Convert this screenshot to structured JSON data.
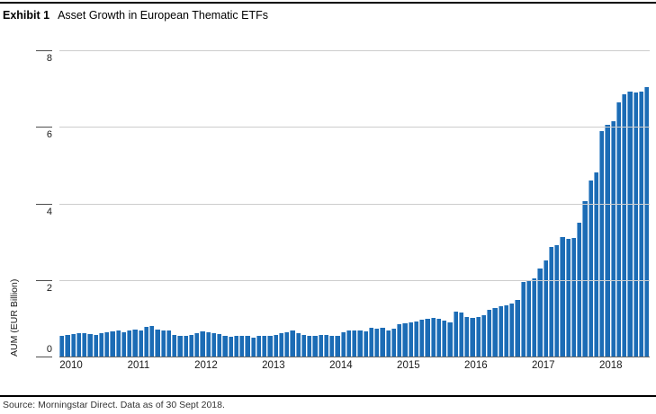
{
  "header": {
    "exhibit_label": "Exhibit 1",
    "title": "Asset Growth in European Thematic ETFs"
  },
  "footer": {
    "source_text": "Source: Morningstar Direct. Data as of 30 Sept 2018."
  },
  "chart_data": {
    "type": "bar",
    "title": "Asset Growth in European Thematic ETFs",
    "xlabel": "",
    "ylabel": "AUM (EUR Billion)",
    "ylim": [
      0,
      8
    ],
    "yticks": [
      0,
      2,
      4,
      6,
      8
    ],
    "grid": true,
    "legend": "none",
    "bar_color": "#1c6cb5",
    "x_unit": "month",
    "period": "Jan 2010 - Sep 2018",
    "years": [
      {
        "year": "2010",
        "values": [
          0.55,
          0.57,
          0.58,
          0.6,
          0.62,
          0.58,
          0.57,
          0.6,
          0.63,
          0.66,
          0.67,
          0.64
        ]
      },
      {
        "year": "2011",
        "values": [
          0.67,
          0.7,
          0.69,
          0.78,
          0.8,
          0.71,
          0.67,
          0.69,
          0.57,
          0.53,
          0.54,
          0.56
        ]
      },
      {
        "year": "2012",
        "values": [
          0.6,
          0.66,
          0.64,
          0.61,
          0.58,
          0.53,
          0.52,
          0.53,
          0.53,
          0.53,
          0.5,
          0.53
        ]
      },
      {
        "year": "2013",
        "values": [
          0.54,
          0.54,
          0.56,
          0.62,
          0.64,
          0.67,
          0.6,
          0.56,
          0.54,
          0.54,
          0.56,
          0.56
        ]
      },
      {
        "year": "2014",
        "values": [
          0.55,
          0.55,
          0.63,
          0.69,
          0.69,
          0.69,
          0.65,
          0.74,
          0.72,
          0.76,
          0.69,
          0.72
        ]
      },
      {
        "year": "2015",
        "values": [
          0.85,
          0.88,
          0.9,
          0.92,
          0.96,
          0.98,
          1.0,
          0.98,
          0.93,
          0.9,
          1.18,
          1.15
        ]
      },
      {
        "year": "2016",
        "values": [
          1.04,
          1.01,
          1.03,
          1.09,
          1.22,
          1.27,
          1.31,
          1.33,
          1.39,
          1.47,
          1.94,
          1.98
        ]
      },
      {
        "year": "2017",
        "values": [
          2.04,
          2.3,
          2.52,
          2.87,
          2.92,
          3.11,
          3.07,
          3.1,
          3.5,
          4.07,
          4.59,
          4.8
        ]
      },
      {
        "year": "2018",
        "values": [
          5.9,
          6.05,
          6.15,
          6.65,
          6.85,
          6.92,
          6.9,
          6.91,
          7.05
        ]
      }
    ]
  }
}
